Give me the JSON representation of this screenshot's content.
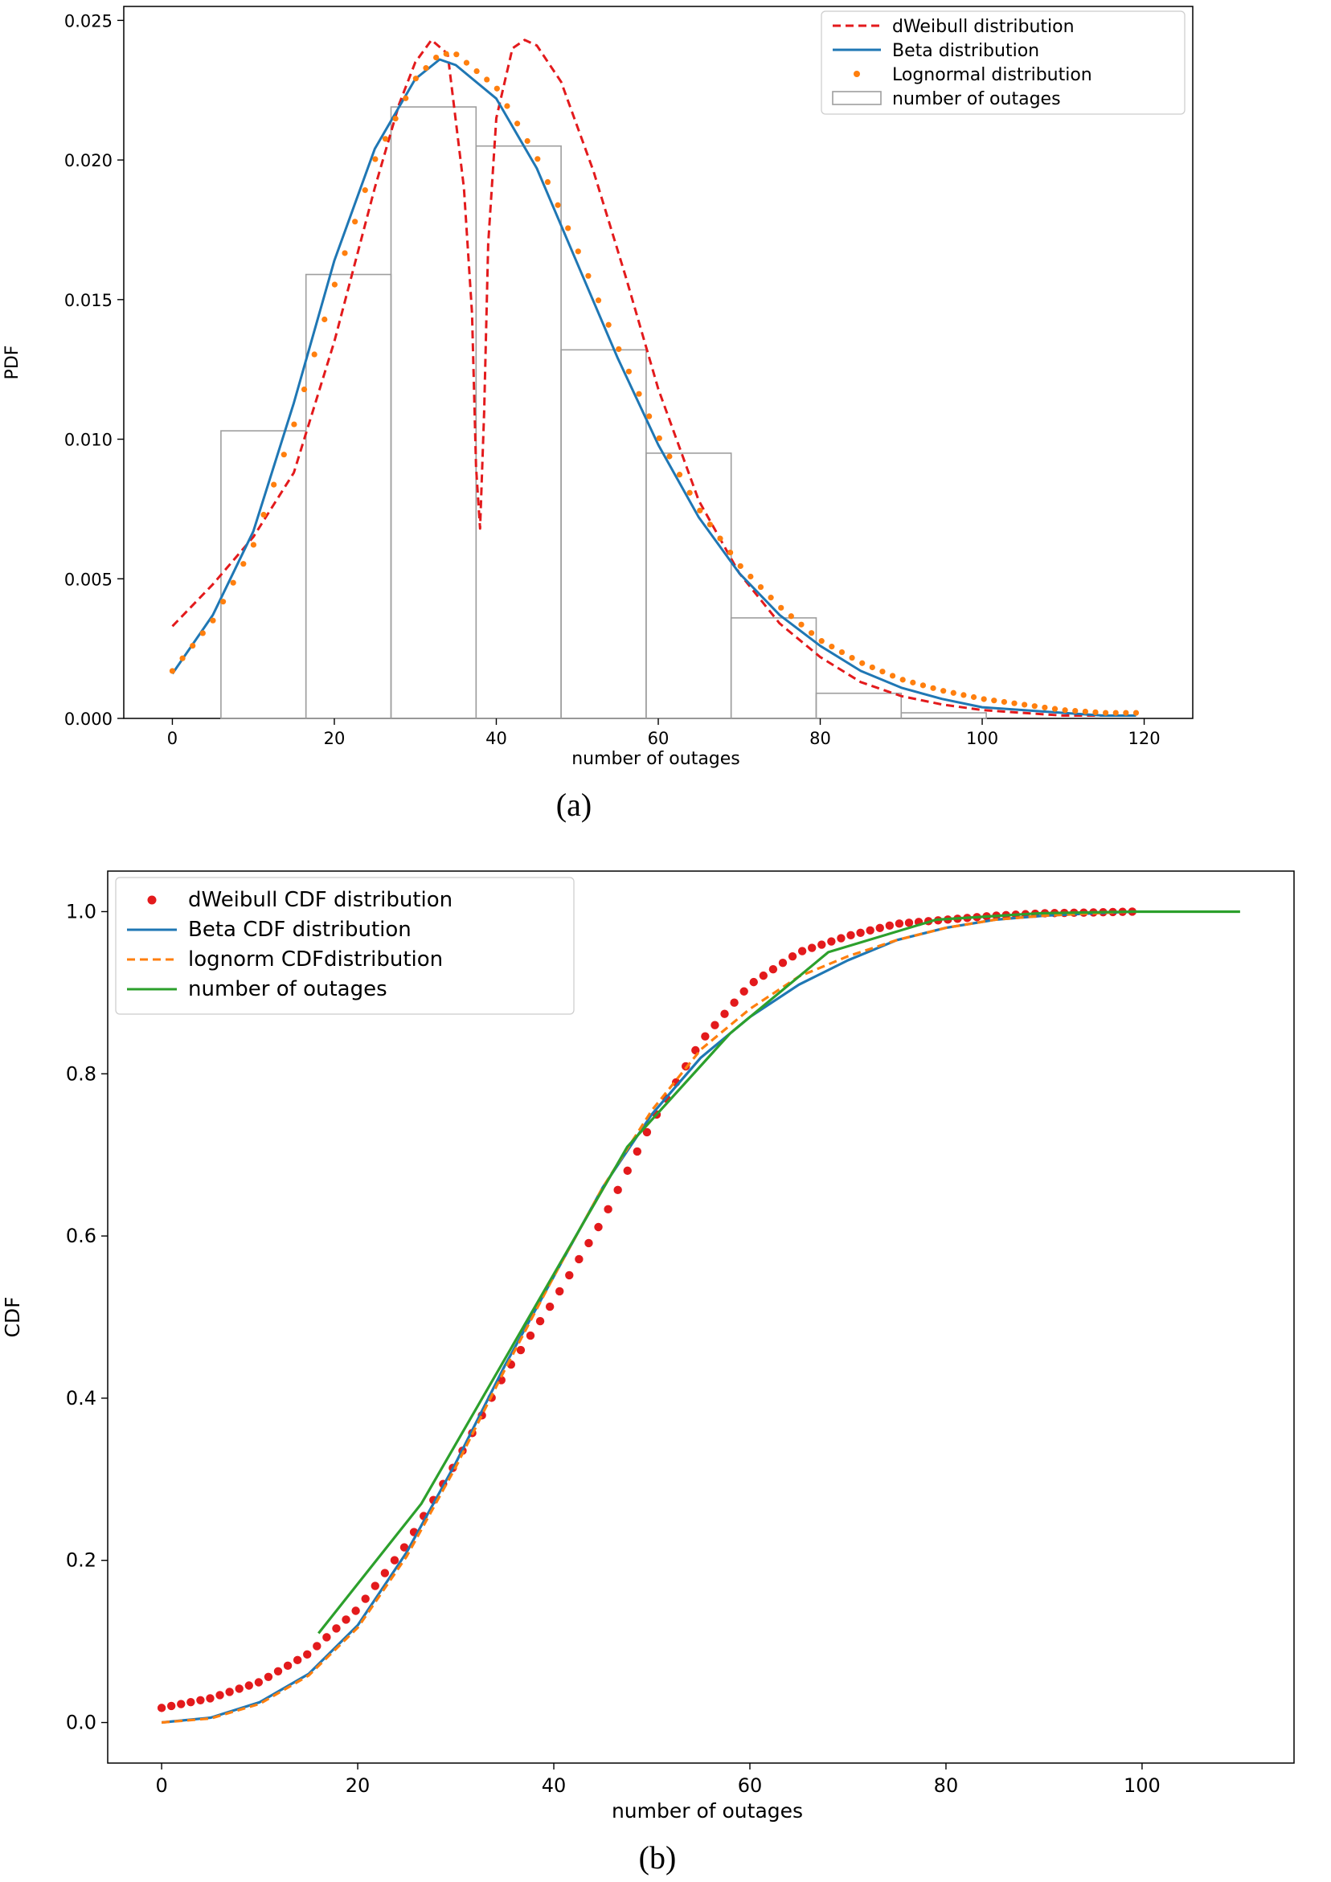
{
  "captions": {
    "a": "(a)",
    "b": "(b)"
  },
  "colors": {
    "red": "#e31a1c",
    "blue": "#1f77b4",
    "orange": "#ff7f0e",
    "green": "#2ca02c",
    "gray": "#9e9e9e"
  },
  "chart_data": [
    {
      "type": "line",
      "panel": "a",
      "xlabel": "number of outages",
      "ylabel": "PDF",
      "xlim": [
        -6,
        126
      ],
      "ylim": [
        0,
        0.0255
      ],
      "xticks": [
        0,
        20,
        40,
        60,
        80,
        100,
        120
      ],
      "yticks": [
        0.0,
        0.005,
        0.01,
        0.015,
        0.02,
        0.025
      ],
      "ytick_labels": [
        "0.000",
        "0.005",
        "0.010",
        "0.015",
        "0.020",
        "0.025"
      ],
      "legend_position": "upper right",
      "legend": [
        "dWeibull distribution",
        "Beta distribution",
        "Lognormal distribution",
        "number of outages"
      ],
      "histogram": {
        "name": "number of outages",
        "bin_edges": [
          6,
          16.5,
          27,
          37.5,
          48,
          58.5,
          69,
          79.5,
          90,
          100.5
        ],
        "values": [
          0.0103,
          0.0159,
          0.0219,
          0.0205,
          0.0132,
          0.0095,
          0.0036,
          0.0009,
          0.0002
        ]
      },
      "series": [
        {
          "name": "dWeibull distribution",
          "style": "dashed",
          "x": [
            0,
            5,
            10,
            15,
            20,
            25,
            28,
            30,
            32,
            34,
            36,
            37,
            37.5,
            38,
            38.5,
            39,
            40,
            42,
            43.5,
            45,
            48,
            52,
            56,
            60,
            65,
            70,
            75,
            80,
            85,
            90,
            95,
            100,
            105,
            110,
            115,
            119
          ],
          "y": [
            0.0033,
            0.0048,
            0.0065,
            0.0088,
            0.0135,
            0.019,
            0.022,
            0.0235,
            0.0243,
            0.0238,
            0.019,
            0.0145,
            0.009,
            0.0068,
            0.011,
            0.017,
            0.0215,
            0.024,
            0.0243,
            0.0241,
            0.0228,
            0.0196,
            0.0158,
            0.0118,
            0.0078,
            0.0052,
            0.0034,
            0.0022,
            0.0013,
            0.0008,
            0.0005,
            0.0003,
            0.0002,
            0.0001,
            0.0001,
            0.0001
          ]
        },
        {
          "name": "Beta distribution",
          "style": "solid",
          "x": [
            0,
            5,
            10,
            15,
            20,
            25,
            30,
            33,
            35,
            40,
            45,
            50,
            55,
            60,
            65,
            70,
            75,
            80,
            85,
            90,
            95,
            100,
            105,
            110,
            115,
            119
          ],
          "y": [
            0.0016,
            0.0037,
            0.0067,
            0.0113,
            0.0164,
            0.0204,
            0.0229,
            0.0236,
            0.0234,
            0.0222,
            0.0197,
            0.0163,
            0.0129,
            0.0098,
            0.0072,
            0.0052,
            0.0037,
            0.0026,
            0.0017,
            0.0011,
            0.0007,
            0.0004,
            0.0003,
            0.0002,
            0.0001,
            0.0001
          ]
        },
        {
          "name": "Lognormal distribution",
          "style": "dots",
          "x": [
            0,
            5,
            10,
            15,
            20,
            25,
            30,
            33,
            35,
            40,
            45,
            50,
            55,
            60,
            65,
            70,
            75,
            80,
            85,
            90,
            95,
            100,
            105,
            110,
            115,
            119
          ],
          "y": [
            0.0017,
            0.0035,
            0.0062,
            0.0105,
            0.0155,
            0.02,
            0.0229,
            0.0238,
            0.0238,
            0.0226,
            0.0201,
            0.0168,
            0.0133,
            0.0101,
            0.0075,
            0.0055,
            0.004,
            0.0028,
            0.002,
            0.0014,
            0.001,
            0.0007,
            0.0005,
            0.0003,
            0.0002,
            0.0002
          ]
        }
      ]
    },
    {
      "type": "line",
      "panel": "b",
      "xlabel": "number of outages",
      "ylabel": "CDF",
      "xlim": [
        -5.5,
        115.5
      ],
      "ylim": [
        -0.05,
        1.05
      ],
      "xticks": [
        0,
        20,
        40,
        60,
        80,
        100
      ],
      "yticks": [
        0.0,
        0.2,
        0.4,
        0.6,
        0.8,
        1.0
      ],
      "ytick_labels": [
        "0.0",
        "0.2",
        "0.4",
        "0.6",
        "0.8",
        "1.0"
      ],
      "legend_position": "upper left",
      "legend": [
        "dWeibull CDF  distribution",
        "Beta CDF distribution",
        "lognorm CDFdistribution",
        "number of outages"
      ],
      "series": [
        {
          "name": "dWeibull CDF  distribution",
          "style": "dots",
          "x": [
            0,
            5,
            10,
            15,
            20,
            25,
            30,
            35,
            40,
            45,
            50,
            55,
            60,
            65,
            70,
            75,
            80,
            85,
            90,
            95,
            99
          ],
          "y": [
            0.018,
            0.03,
            0.05,
            0.085,
            0.14,
            0.22,
            0.32,
            0.43,
            0.52,
            0.62,
            0.74,
            0.84,
            0.91,
            0.95,
            0.97,
            0.985,
            0.99,
            0.995,
            0.998,
            0.999,
            1.0
          ]
        },
        {
          "name": "Beta CDF distribution",
          "style": "solid",
          "x": [
            0,
            5,
            10,
            15,
            20,
            25,
            30,
            35,
            40,
            45,
            50,
            55,
            60,
            65,
            70,
            75,
            80,
            85,
            90,
            95,
            99
          ],
          "y": [
            0.0,
            0.006,
            0.025,
            0.06,
            0.12,
            0.21,
            0.32,
            0.44,
            0.55,
            0.66,
            0.75,
            0.82,
            0.87,
            0.91,
            0.94,
            0.965,
            0.98,
            0.99,
            0.995,
            0.998,
            1.0
          ]
        },
        {
          "name": "lognorm CDFdistribution",
          "style": "dashed",
          "x": [
            0,
            5,
            10,
            15,
            20,
            25,
            30,
            35,
            40,
            45,
            50,
            55,
            60,
            65,
            70,
            75,
            80,
            85,
            90,
            95,
            99
          ],
          "y": [
            0.0,
            0.005,
            0.023,
            0.058,
            0.117,
            0.205,
            0.315,
            0.435,
            0.55,
            0.66,
            0.755,
            0.83,
            0.88,
            0.92,
            0.945,
            0.965,
            0.98,
            0.99,
            0.995,
            0.998,
            1.0
          ]
        },
        {
          "name": "number of outages",
          "style": "solid",
          "x": [
            16,
            26.5,
            37,
            47.5,
            58,
            68,
            79,
            89.5,
            99,
            110
          ],
          "y": [
            0.11,
            0.27,
            0.49,
            0.71,
            0.85,
            0.95,
            0.99,
            0.998,
            1.0,
            1.0
          ]
        }
      ]
    }
  ]
}
